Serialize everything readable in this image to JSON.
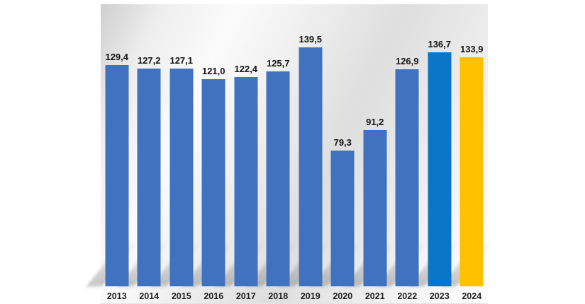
{
  "chart_data": {
    "type": "bar",
    "title": "",
    "xlabel": "",
    "ylabel": "",
    "categories": [
      "2013",
      "2014",
      "2015",
      "2016",
      "2017",
      "2018",
      "2019",
      "2020",
      "2021",
      "2022",
      "2023",
      "2024"
    ],
    "values": [
      129.4,
      127.2,
      127.1,
      121.0,
      122.4,
      125.7,
      139.5,
      79.3,
      91.2,
      126.9,
      136.7,
      133.9
    ],
    "value_labels": [
      "129,4",
      "127,2",
      "127,1",
      "121,0",
      "122,4",
      "125,7",
      "139,5",
      "79,3",
      "91,2",
      "126,9",
      "136,7",
      "133,9"
    ],
    "bar_colors": [
      "#4172C0",
      "#4172C0",
      "#4172C0",
      "#4172C0",
      "#4172C0",
      "#4172C0",
      "#4172C0",
      "#4172C0",
      "#4172C0",
      "#4172C0",
      "#0B76C8",
      "#FFC000"
    ],
    "ylim": [
      0,
      165
    ],
    "grid": false,
    "legend": "none",
    "decimal_separator": ","
  },
  "colors": {
    "bar_default": "#4172C0",
    "bar_highlight_2023": "#0B76C8",
    "bar_highlight_2024": "#FFC000",
    "value_label": "#141414",
    "axis_label": "#1F1F1F",
    "plot_bg_dark": "#CFCFCF",
    "plot_bg_light": "#FFFFFF",
    "page_bg": "#FFFFFF"
  }
}
